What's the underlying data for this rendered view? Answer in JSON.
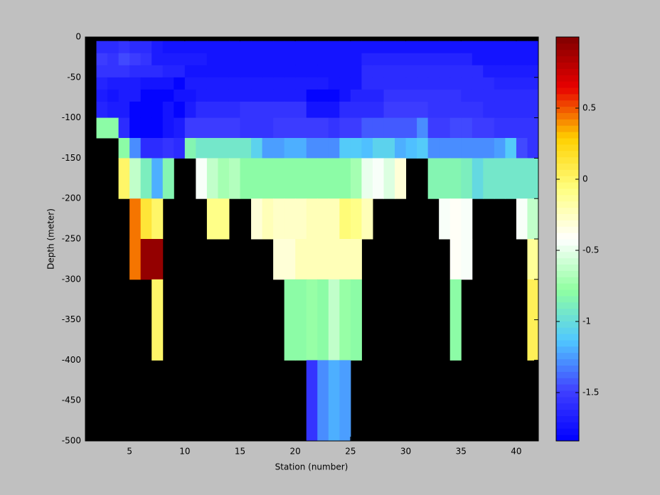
{
  "chart_data": {
    "type": "heatmap",
    "xlabel": "Station (number)",
    "ylabel": "Depth (meter)",
    "xlim": [
      1,
      42
    ],
    "xticks": [
      5,
      10,
      15,
      20,
      25,
      30,
      35,
      40
    ],
    "ylim": [
      -500,
      0
    ],
    "yticks": [
      0,
      -50,
      -100,
      -150,
      -200,
      -250,
      -300,
      -350,
      -400,
      -450,
      -500
    ],
    "clim": [
      -1.84,
      1.0
    ],
    "cticks": [
      0.5,
      0,
      -0.5,
      -1,
      -1.5
    ],
    "colormap": [
      "#0000ff",
      "#4040ff",
      "#50c8ff",
      "#90ffa0",
      "#ffffff",
      "#ffff80",
      "#ffd000",
      "#e80000",
      "#800000"
    ],
    "nan_color": "#000000",
    "xbins": [
      2,
      3,
      4,
      5,
      6,
      7,
      8,
      9,
      10,
      11,
      12,
      13,
      14,
      15,
      16,
      17,
      18,
      19,
      20,
      21,
      22,
      23,
      24,
      25,
      26,
      27,
      28,
      29,
      30,
      31,
      32,
      33,
      34,
      35,
      36,
      37,
      38,
      39,
      40,
      41,
      42
    ],
    "ybins": [
      -5,
      -20,
      -35,
      -50,
      -65,
      -80,
      -100,
      -125,
      -150,
      -200,
      -250,
      -300,
      -400,
      -500
    ],
    "z": [
      [
        -1.6,
        -1.6,
        -1.55,
        -1.6,
        -1.6,
        -1.7,
        -1.75,
        -1.75,
        -1.75,
        -1.75,
        -1.75,
        -1.75,
        -1.75,
        -1.75,
        -1.75,
        -1.75,
        -1.75,
        -1.75,
        -1.75,
        -1.75,
        -1.75,
        -1.75,
        -1.75,
        -1.75,
        -1.75,
        -1.75,
        -1.75,
        -1.75,
        -1.75,
        -1.75,
        -1.72,
        -1.72,
        -1.75,
        -1.75,
        -1.75,
        -1.75,
        -1.75,
        -1.75,
        -1.75,
        -1.75
      ],
      [
        -1.5,
        -1.55,
        -1.45,
        -1.5,
        -1.55,
        -1.7,
        -1.7,
        -1.7,
        -1.7,
        -1.7,
        -1.75,
        -1.75,
        -1.75,
        -1.75,
        -1.75,
        -1.75,
        -1.75,
        -1.75,
        -1.75,
        -1.75,
        -1.75,
        -1.75,
        -1.75,
        -1.75,
        -1.65,
        -1.65,
        -1.65,
        -1.65,
        -1.65,
        -1.65,
        -1.65,
        -1.65,
        -1.65,
        -1.65,
        -1.72,
        -1.72,
        -1.72,
        -1.72,
        -1.72,
        -1.72
      ],
      [
        -1.55,
        -1.55,
        -1.55,
        -1.6,
        -1.6,
        -1.6,
        -1.65,
        -1.65,
        -1.72,
        -1.72,
        -1.72,
        -1.72,
        -1.72,
        -1.72,
        -1.72,
        -1.72,
        -1.72,
        -1.72,
        -1.72,
        -1.72,
        -1.72,
        -1.72,
        -1.72,
        -1.72,
        -1.6,
        -1.6,
        -1.6,
        -1.6,
        -1.6,
        -1.6,
        -1.6,
        -1.6,
        -1.6,
        -1.6,
        -1.6,
        -1.7,
        -1.7,
        -1.7,
        -1.7,
        -1.7
      ],
      [
        -1.65,
        -1.7,
        -1.7,
        -1.7,
        -1.75,
        -1.75,
        -1.75,
        -1.8,
        -1.7,
        -1.7,
        -1.7,
        -1.7,
        -1.7,
        -1.7,
        -1.7,
        -1.7,
        -1.7,
        -1.7,
        -1.7,
        -1.7,
        -1.7,
        -1.75,
        -1.75,
        -1.75,
        -1.6,
        -1.6,
        -1.6,
        -1.6,
        -1.6,
        -1.6,
        -1.6,
        -1.6,
        -1.6,
        -1.6,
        -1.6,
        -1.6,
        -1.65,
        -1.65,
        -1.65,
        -1.65
      ],
      [
        -1.7,
        -1.75,
        -1.7,
        -1.7,
        -1.8,
        -1.8,
        -1.8,
        -1.75,
        -1.75,
        -1.7,
        -1.7,
        -1.7,
        -1.7,
        -1.7,
        -1.7,
        -1.7,
        -1.7,
        -1.7,
        -1.7,
        -1.8,
        -1.8,
        -1.8,
        -1.75,
        -1.65,
        -1.65,
        -1.65,
        -1.55,
        -1.55,
        -1.55,
        -1.55,
        -1.55,
        -1.55,
        -1.55,
        -1.6,
        -1.6,
        -1.6,
        -1.6,
        -1.6,
        -1.6,
        -1.6
      ],
      [
        -1.65,
        -1.7,
        -1.7,
        -1.8,
        -1.8,
        -1.8,
        -1.75,
        -1.8,
        -1.7,
        -1.6,
        -1.6,
        -1.6,
        -1.6,
        -1.55,
        -1.55,
        -1.55,
        -1.55,
        -1.55,
        -1.55,
        -1.75,
        -1.75,
        -1.75,
        -1.6,
        -1.6,
        -1.6,
        -1.6,
        -1.5,
        -1.5,
        -1.5,
        -1.5,
        -1.55,
        -1.55,
        -1.55,
        -1.55,
        -1.55,
        -1.6,
        -1.6,
        -1.6,
        -1.6,
        -1.6
      ],
      [
        -0.8,
        -0.8,
        -1.6,
        -1.8,
        -1.8,
        -1.8,
        -1.75,
        -1.7,
        -1.5,
        -1.5,
        -1.5,
        -1.5,
        -1.5,
        -1.55,
        -1.55,
        -1.55,
        -1.5,
        -1.5,
        -1.5,
        -1.5,
        -1.5,
        -1.55,
        -1.5,
        -1.5,
        -1.4,
        -1.4,
        -1.4,
        -1.4,
        -1.4,
        -1.3,
        -1.5,
        -1.5,
        -1.45,
        -1.45,
        -1.5,
        -1.5,
        -1.55,
        -1.55,
        -1.55,
        -1.55
      ],
      [
        null,
        null,
        -0.8,
        -1.3,
        -1.6,
        -1.6,
        -1.55,
        -1.6,
        -0.85,
        -0.95,
        -0.95,
        -0.95,
        -0.95,
        -0.95,
        -1.05,
        -1.25,
        -1.25,
        -1.2,
        -1.2,
        -1.3,
        -1.3,
        -1.3,
        -1.1,
        -1.1,
        -1.15,
        -1.05,
        -1.05,
        -1.2,
        -1.15,
        -1.1,
        -1.3,
        -1.3,
        -1.3,
        -1.3,
        -1.3,
        -1.3,
        -1.25,
        -1.1,
        -1.45,
        -1.55
      ],
      [
        null,
        null,
        0.0,
        -0.6,
        -0.9,
        -1.2,
        -0.85,
        null,
        null,
        -0.45,
        -0.6,
        -0.7,
        -0.65,
        -0.8,
        -0.8,
        -0.8,
        -0.8,
        -0.8,
        -0.8,
        -0.8,
        -0.8,
        -0.8,
        -0.8,
        -0.7,
        -0.5,
        -0.45,
        -0.55,
        -0.3,
        null,
        null,
        -0.85,
        -0.85,
        -0.85,
        -0.9,
        -1.0,
        -0.95,
        -0.95,
        -0.95,
        -0.95,
        -0.95
      ],
      [
        null,
        null,
        null,
        0.45,
        0.15,
        0.0,
        null,
        null,
        null,
        null,
        -0.1,
        -0.1,
        null,
        null,
        -0.3,
        -0.2,
        -0.25,
        -0.25,
        -0.25,
        -0.2,
        -0.2,
        -0.2,
        -0.05,
        -0.1,
        -0.2,
        null,
        null,
        null,
        null,
        null,
        null,
        -0.45,
        -0.4,
        -0.45,
        null,
        null,
        null,
        null,
        -0.45,
        -0.6
      ],
      [
        null,
        null,
        null,
        0.45,
        0.95,
        0.95,
        null,
        null,
        null,
        null,
        null,
        null,
        null,
        null,
        null,
        null,
        -0.3,
        -0.3,
        -0.2,
        -0.2,
        -0.2,
        -0.2,
        -0.2,
        -0.2,
        null,
        null,
        null,
        null,
        null,
        null,
        null,
        null,
        -0.4,
        -0.45,
        null,
        null,
        null,
        null,
        null,
        -0.15
      ],
      [
        null,
        null,
        null,
        null,
        null,
        0.0,
        null,
        null,
        null,
        null,
        null,
        null,
        null,
        null,
        null,
        null,
        null,
        -0.8,
        -0.8,
        -0.75,
        -0.8,
        -0.6,
        -0.75,
        -0.8,
        null,
        null,
        null,
        null,
        null,
        null,
        null,
        null,
        -0.8,
        null,
        null,
        null,
        null,
        null,
        null,
        0.05
      ],
      [
        null,
        null,
        null,
        null,
        null,
        null,
        null,
        null,
        null,
        null,
        null,
        null,
        null,
        null,
        null,
        null,
        null,
        null,
        null,
        -1.55,
        -1.3,
        -1.2,
        -1.25,
        null,
        null,
        null,
        null,
        null,
        null,
        null,
        null,
        null,
        null,
        null,
        null,
        null,
        null,
        null,
        null,
        null
      ]
    ]
  }
}
